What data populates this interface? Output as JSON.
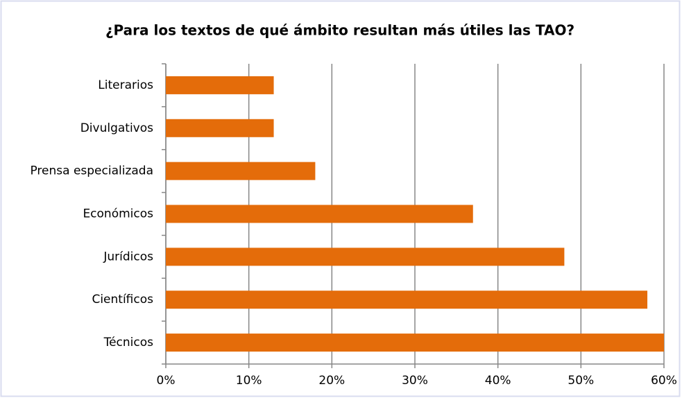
{
  "chart_data": {
    "type": "bar",
    "orientation": "horizontal",
    "title": "¿Para los textos de qué ámbito resultan más útiles las TAO?",
    "categories": [
      "Literarios",
      "Divulgativos",
      "Prensa especializada",
      "Económicos",
      "Jurídicos",
      "Científicos",
      "Técnicos"
    ],
    "values": [
      13,
      13,
      18,
      37,
      48,
      58,
      60
    ],
    "color": "#e46c0a",
    "xlim": [
      0,
      60
    ],
    "xticks": [
      {
        "value": 0,
        "label": "0%"
      },
      {
        "value": 10,
        "label": "10%"
      },
      {
        "value": 20,
        "label": "20%"
      },
      {
        "value": 30,
        "label": "30%"
      },
      {
        "value": 40,
        "label": "40%"
      },
      {
        "value": 50,
        "label": "50%"
      },
      {
        "value": 60,
        "label": "60%"
      }
    ],
    "grid": true
  }
}
